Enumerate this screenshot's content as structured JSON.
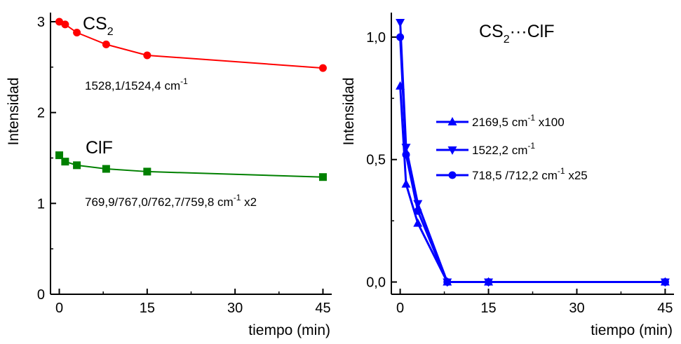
{
  "chart_data": [
    {
      "type": "line",
      "xlabel": "tiempo (min)",
      "ylabel": "Intensidad",
      "xlim": [
        -1.5,
        46.5
      ],
      "ylim": [
        0,
        3.1
      ],
      "x_ticks": [
        0,
        15,
        30,
        45
      ],
      "x_tick_labels": [
        "0",
        "15",
        "30",
        "45"
      ],
      "y_ticks": [
        0,
        1,
        2,
        3
      ],
      "y_tick_labels": [
        "0",
        "1",
        "2",
        "3"
      ],
      "series": [
        {
          "color": "#ff0000",
          "marker": "circle",
          "x": [
            0,
            1,
            3,
            8,
            15,
            45
          ],
          "y": [
            3.0,
            2.97,
            2.88,
            2.75,
            2.63,
            2.49
          ]
        },
        {
          "color": "#008000",
          "marker": "square",
          "x": [
            0,
            1,
            3,
            8,
            15,
            45
          ],
          "y": [
            1.53,
            1.46,
            1.42,
            1.38,
            1.35,
            1.29
          ]
        }
      ],
      "annotations": {
        "cs2_label_main": "CS",
        "cs2_label_sub": "2",
        "cs2_wavenumber": "1528,1/1524,4 cm",
        "cs2_exp": "-1",
        "clf_label": "ClF",
        "clf_wavenumber": "769,9/767,0/762,7/759,8 cm",
        "clf_exp": "-1",
        "clf_factor": " x2"
      }
    },
    {
      "type": "line",
      "xlabel": "tiempo (min)",
      "ylabel": "Intensidad",
      "xlim": [
        -1.5,
        46.5
      ],
      "ylim": [
        -0.05,
        1.1
      ],
      "x_ticks": [
        0,
        15,
        30,
        45
      ],
      "x_tick_labels": [
        "0",
        "15",
        "30",
        "45"
      ],
      "y_ticks": [
        0.0,
        0.5,
        1.0
      ],
      "y_tick_labels": [
        "0,0",
        "0,5",
        "1,0"
      ],
      "title_main": "CS",
      "title_sub": "2",
      "title_rest": "···ClF",
      "series": [
        {
          "color": "#0000ff",
          "marker": "triangle-up",
          "legend_text": "2169,5  cm",
          "legend_exp": "-1",
          "legend_suffix": " x100",
          "x": [
            0,
            1,
            3,
            8,
            15,
            45
          ],
          "y": [
            0.8,
            0.4,
            0.24,
            0.0,
            0.0,
            0.0
          ]
        },
        {
          "color": "#0000ff",
          "marker": "triangle-down",
          "legend_text": "1522,2 cm",
          "legend_exp": "-1",
          "legend_suffix": "",
          "x": [
            0,
            1,
            3,
            8,
            15,
            45
          ],
          "y": [
            1.06,
            0.55,
            0.32,
            0.0,
            0.0,
            0.0
          ]
        },
        {
          "color": "#0000ff",
          "marker": "circle",
          "legend_text": "718,5 /712,2 cm",
          "legend_exp": "-1",
          "legend_suffix": " x25",
          "x": [
            0,
            1,
            3,
            8,
            15,
            45
          ],
          "y": [
            1.0,
            0.52,
            0.29,
            0.0,
            0.0,
            0.0
          ]
        }
      ]
    }
  ]
}
